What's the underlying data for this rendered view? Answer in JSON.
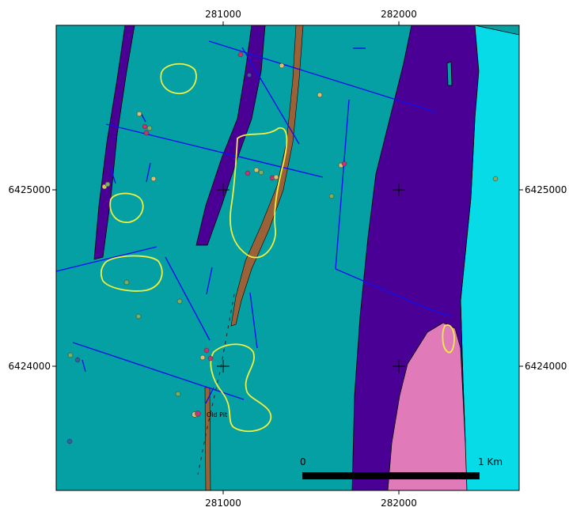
{
  "map": {
    "colors": {
      "background_unit": "#05a0a3",
      "dyke_unit": "#4b0095",
      "eastern_unit": "#08dbe8",
      "intrusion_unit": "#e07ab8",
      "road": "#9a6238",
      "faults": "#1010ee",
      "outline": "#f0f040",
      "samples": [
        "#d8c070",
        "#c03870",
        "#7ab060",
        "#3060a0"
      ]
    },
    "x_axis_ticks": [
      "281000",
      "282000"
    ],
    "y_axis_ticks": [
      "6425000",
      "6424000"
    ],
    "annotations": [
      {
        "label": "Old Pit"
      }
    ],
    "scale_bar": {
      "start_label": "0",
      "end_label": "1 Km"
    }
  }
}
